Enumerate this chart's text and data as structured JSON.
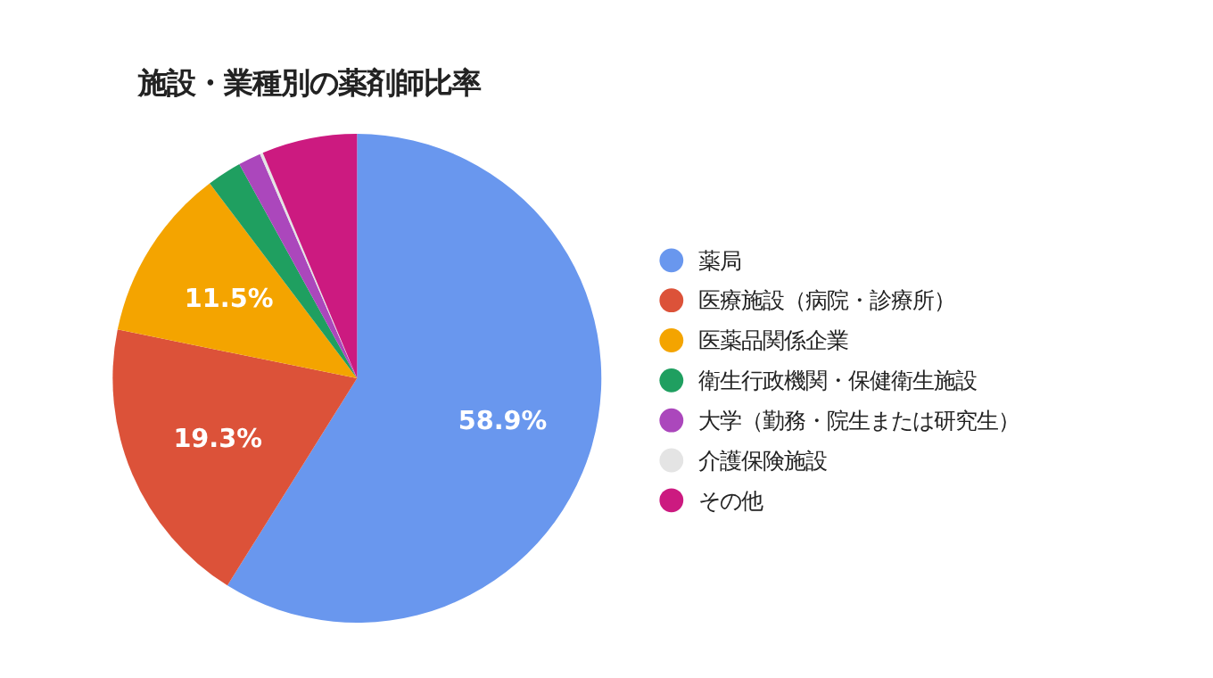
{
  "chart_data": {
    "type": "pie",
    "title": "施設・業種別の薬剤師比率",
    "categories": [
      "薬局",
      "医療施設（病院・診療所）",
      "医薬品関係企業",
      "衛生行政機関・保健衛生施設",
      "大学（勤務・院生または研究生）",
      "介護保険施設",
      "その他"
    ],
    "values": [
      58.9,
      19.3,
      11.5,
      2.3,
      1.5,
      0.2,
      6.3
    ],
    "colors": [
      "#6997ee",
      "#dc5239",
      "#f4a400",
      "#1f9f60",
      "#ab47bc",
      "#e4e4e4",
      "#cc1a80"
    ],
    "value_labels": [
      "58.9%",
      "19.3%",
      "11.5%",
      null,
      null,
      null,
      null
    ],
    "legend": "right"
  }
}
